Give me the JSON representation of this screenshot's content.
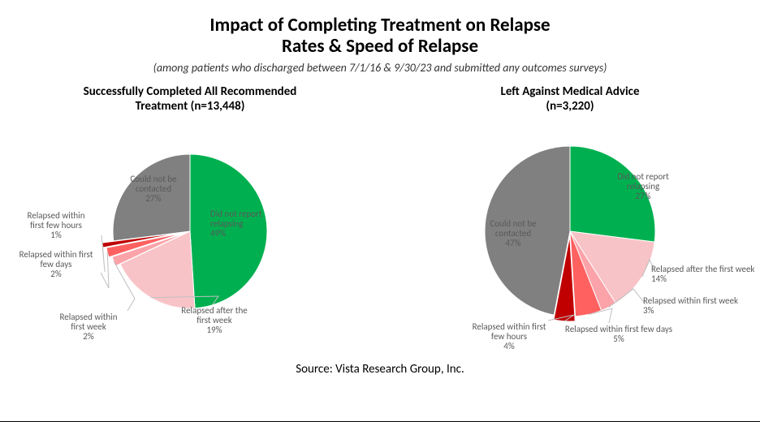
{
  "title_line1": "Impact of Completing Treatment on Relapse",
  "title_line2": "Rates & Speed of Relapse",
  "title_fontsize": 23,
  "subtitle": "(among patients who discharged between 7/1/16 & 9/30/23 and submitted any outcomes surveys)",
  "subtitle_fontsize": 14,
  "source": "Source:  Vista Research Group, Inc.",
  "source_fontsize": 15,
  "background_color": "#ffffff",
  "label_color": "#595959",
  "label_fontsize": 11,
  "leader_color": "#bfbfbf",
  "chart_title_fontsize": 15,
  "left_chart": {
    "title_line1": "Successfully Completed All Recommended",
    "title_line2": "Treatment (n=13,448)",
    "type": "pie",
    "pie_radius": 95,
    "start_angle": 0,
    "slices": [
      {
        "label_line1": "Did not report",
        "label_line2": "relapsing",
        "value": 49,
        "percent": "49%",
        "color": "#00b050"
      },
      {
        "label_line1": "Relapsed after the",
        "label_line2": "first week",
        "value": 19,
        "percent": "19%",
        "color": "#f8c3c7"
      },
      {
        "label_line1": "Relapsed within",
        "label_line2": "first week",
        "value": 2,
        "percent": "2%",
        "color": "#fba3a9",
        "explode": 6
      },
      {
        "label_line1": "Relapsed within first",
        "label_line2": "few days",
        "value": 2,
        "percent": "2%",
        "color": "#ff6161",
        "explode": 10
      },
      {
        "label_line1": "Relapsed within",
        "label_line2": "first few hours",
        "value": 1,
        "percent": "1%",
        "color": "#c00000",
        "explode": 14
      },
      {
        "label_line1": "Could not be",
        "label_line2": "contacted",
        "value": 27,
        "percent": "27%",
        "color": "#808080"
      }
    ]
  },
  "right_chart": {
    "title_line1": "Left Against Medical Advice",
    "title_line2": "(n=3,220)",
    "type": "pie",
    "pie_radius": 105,
    "start_angle": 0,
    "slices": [
      {
        "label_line1": "Did not report",
        "label_line2": "relapsing",
        "value": 27,
        "percent": "27%",
        "color": "#00b050"
      },
      {
        "label_line1": "Relapsed after the first week",
        "label_line2": "",
        "value": 14,
        "percent": "14%",
        "color": "#f8c3c7"
      },
      {
        "label_line1": "Relapsed within first week",
        "label_line2": "",
        "value": 3,
        "percent": "3%",
        "color": "#fba3a9"
      },
      {
        "label_line1": "Relapsed within first few days",
        "label_line2": "",
        "value": 5,
        "percent": "5%",
        "color": "#ff6161"
      },
      {
        "label_line1": "Relapsed within first",
        "label_line2": "few hours",
        "value": 4,
        "percent": "4%",
        "color": "#c00000",
        "explode": 6
      },
      {
        "label_line1": "Could not be",
        "label_line2": "contacted",
        "value": 47,
        "percent": "47%",
        "color": "#808080"
      }
    ]
  }
}
